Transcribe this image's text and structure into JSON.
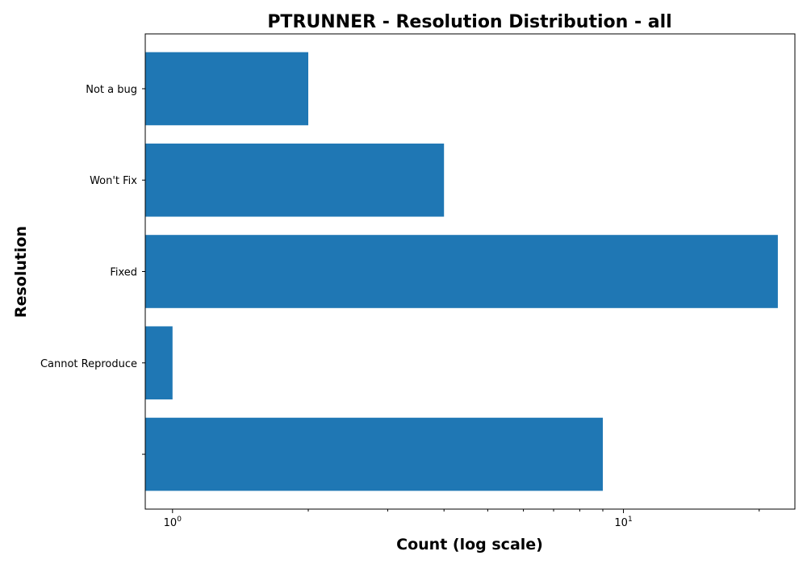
{
  "chart_data": {
    "type": "bar",
    "orientation": "horizontal",
    "title": "PTRUNNER - Resolution Distribution - all",
    "xlabel": "Count (log scale)",
    "ylabel": "Resolution",
    "xscale": "log",
    "xlim": [
      0.87,
      24
    ],
    "x_ticks": [
      {
        "value": 1,
        "base": "10",
        "exponent": "0"
      },
      {
        "value": 10,
        "base": "10",
        "exponent": "1"
      }
    ],
    "categories": [
      "",
      "Cannot Reproduce",
      "Fixed",
      "Won't Fix",
      "Not a bug"
    ],
    "values": [
      9,
      1,
      22,
      4,
      2
    ],
    "bar_color": "#1f77b4",
    "grid": false
  }
}
